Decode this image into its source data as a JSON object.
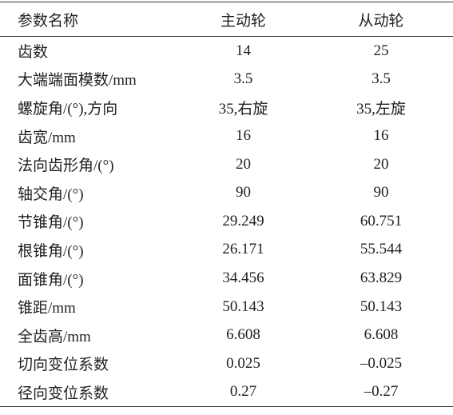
{
  "table": {
    "header": [
      "参数名称",
      "主动轮",
      "从动轮"
    ],
    "rows": [
      [
        "齿数",
        "14",
        "25"
      ],
      [
        "大端端面模数/mm",
        "3.5",
        "3.5"
      ],
      [
        "螺旋角/(°),方向",
        "35,右旋",
        "35,左旋"
      ],
      [
        "齿宽/mm",
        "16",
        "16"
      ],
      [
        "法向齿形角/(°)",
        "20",
        "20"
      ],
      [
        "轴交角/(°)",
        "90",
        "90"
      ],
      [
        "节锥角/(°)",
        "29.249",
        "60.751"
      ],
      [
        "根锥角/(°)",
        "26.171",
        "55.544"
      ],
      [
        "面锥角/(°)",
        "34.456",
        "63.829"
      ],
      [
        "锥距/mm",
        "50.143",
        "50.143"
      ],
      [
        "全齿高/mm",
        "6.608",
        "6.608"
      ],
      [
        "切向变位系数",
        "0.025",
        "–0.025"
      ],
      [
        "径向变位系数",
        "0.27",
        "–0.27"
      ]
    ]
  }
}
